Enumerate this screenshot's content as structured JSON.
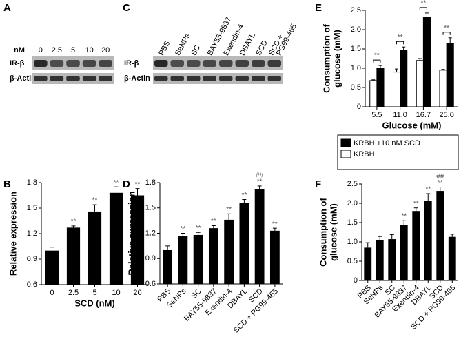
{
  "blots": [
    {
      "panel": "A",
      "header": "nM",
      "lanes": [
        "0",
        "2.5",
        "5",
        "10",
        "20"
      ],
      "rows": [
        "IR-β",
        "β-Actin"
      ]
    },
    {
      "panel": "C",
      "lanes": [
        "PBS",
        "SeNPs",
        "SC",
        "BAY55-9837",
        "Exendin-4",
        "DBAYL",
        "SCD",
        [
          "SCD +",
          "PG99-465"
        ]
      ],
      "rows": [
        "IR-β",
        "β-Actin"
      ]
    }
  ],
  "chart_data": [
    {
      "panel": "B",
      "type": "bar",
      "ylabel": [
        "Relative expression"
      ],
      "xlabel": "SCD (nM)",
      "categories": [
        "0",
        "2.5",
        "5",
        "10",
        "20"
      ],
      "values": [
        1.0,
        1.27,
        1.46,
        1.68,
        1.65
      ],
      "errors": [
        0.04,
        0.02,
        0.08,
        0.07,
        0.08
      ],
      "sig": [
        null,
        "**",
        "**",
        "**",
        "**"
      ],
      "color": "#000000",
      "ylim": [
        0.6,
        1.8
      ],
      "yticks": [
        0.6,
        0.9,
        1.2,
        1.5,
        1.8
      ]
    },
    {
      "panel": "D",
      "type": "bar",
      "ylabel": [
        "Relative expression"
      ],
      "categories": [
        "PBS",
        "SeNPs",
        "SC",
        "BAY55-9837",
        "Exendin-4",
        "DBAYL",
        "SCD",
        "SCD + PG99-465"
      ],
      "values": [
        1.0,
        1.17,
        1.18,
        1.26,
        1.36,
        1.56,
        1.72,
        1.23
      ],
      "errors": [
        0.05,
        0.03,
        0.03,
        0.03,
        0.07,
        0.04,
        0.04,
        0.03
      ],
      "sig": [
        null,
        "**",
        "**",
        "**",
        "**",
        "**",
        "**",
        "**"
      ],
      "sig2": [
        null,
        null,
        null,
        null,
        null,
        null,
        "##",
        null
      ],
      "color": "#000000",
      "ylim": [
        0.6,
        1.8
      ],
      "yticks": [
        0.6,
        0.9,
        1.2,
        1.5,
        1.8
      ]
    },
    {
      "panel": "E",
      "type": "grouped_bar",
      "ylabel": [
        "Consumption of",
        "glucose (mM)"
      ],
      "xlabel": "Glucose (mM)",
      "categories": [
        "5.5",
        "11.0",
        "16.7",
        "25.0"
      ],
      "series": [
        {
          "name": "KRBH +10 nM SCD",
          "color": "#000000",
          "values": [
            1.0,
            1.47,
            2.33,
            1.65
          ],
          "errors": [
            0.07,
            0.08,
            0.1,
            0.14
          ]
        },
        {
          "name": "KRBH",
          "color": "#ffffff",
          "values": [
            0.68,
            0.9,
            1.2,
            0.95
          ],
          "errors": [
            0.02,
            0.08,
            0.05,
            0.02
          ]
        }
      ],
      "sig": [
        "**",
        "**",
        "**",
        "**"
      ],
      "ylim": [
        0,
        2.5
      ],
      "yticks": [
        0,
        {
          "value": 0.5,
          "label": "0.5"
        },
        {
          "value": 1,
          "label": "1.0"
        },
        {
          "value": 1.5,
          "label": "1.5"
        },
        {
          "value": 2,
          "label": "2.0"
        },
        {
          "value": 2.5,
          "label": "2.5"
        }
      ]
    },
    {
      "panel": "F",
      "type": "bar",
      "ylabel": [
        "Consumption of",
        "glucose (mM)"
      ],
      "categories": [
        "PBS",
        "SeNPs",
        "SC",
        "BAY55-9837",
        "Exendin-4",
        "DBAYL",
        "SCD",
        "SCD + PG99-465"
      ],
      "values": [
        0.85,
        1.05,
        1.07,
        1.44,
        1.8,
        2.07,
        2.32,
        1.13
      ],
      "errors": [
        0.13,
        0.09,
        0.12,
        0.12,
        0.08,
        0.18,
        0.1,
        0.07
      ],
      "sig": [
        null,
        null,
        null,
        "**",
        "**",
        "**",
        "**",
        null
      ],
      "sig2": [
        null,
        null,
        null,
        null,
        null,
        null,
        "##",
        null
      ],
      "color": "#000000",
      "ylim": [
        0,
        2.5
      ],
      "yticks": [
        0,
        {
          "value": 0.5,
          "label": "0.5"
        },
        {
          "value": 1,
          "label": "1.0"
        },
        {
          "value": 1.5,
          "label": "1.5"
        },
        {
          "value": 2,
          "label": "2.0"
        },
        {
          "value": 2.5,
          "label": "2.5"
        }
      ]
    }
  ]
}
